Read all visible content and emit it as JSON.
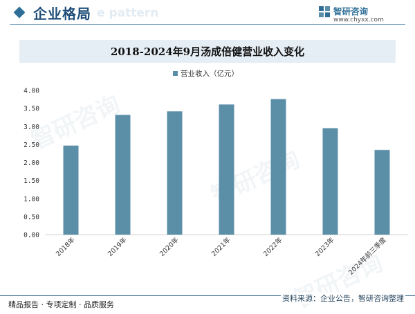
{
  "header": {
    "title": "企业格局",
    "ghost_text": "e pattern",
    "logo_name": "智研咨询",
    "logo_url": "www.chyxx.com"
  },
  "watermark_text": "智研咨询",
  "chart_data": {
    "type": "bar",
    "title": "2018-2024年9月汤成倍健营业收入变化",
    "legend": "营业收入（亿元）",
    "categories": [
      "2018年",
      "2019年",
      "2020年",
      "2021年",
      "2022年",
      "2023年",
      "2024年前三季度"
    ],
    "values": [
      2.47,
      3.32,
      3.42,
      3.61,
      3.76,
      2.95,
      2.35
    ],
    "ylim": [
      0,
      4
    ],
    "yticks": [
      "0.00",
      "0.50",
      "1.00",
      "1.50",
      "2.00",
      "2.50",
      "3.00",
      "3.50",
      "4.00"
    ],
    "bar_color": "#5b8fa8"
  },
  "footer": {
    "left": "精品报告 · 专项定制 · 品质服务",
    "right": "资料来源：企业公告，智研咨询整理"
  }
}
